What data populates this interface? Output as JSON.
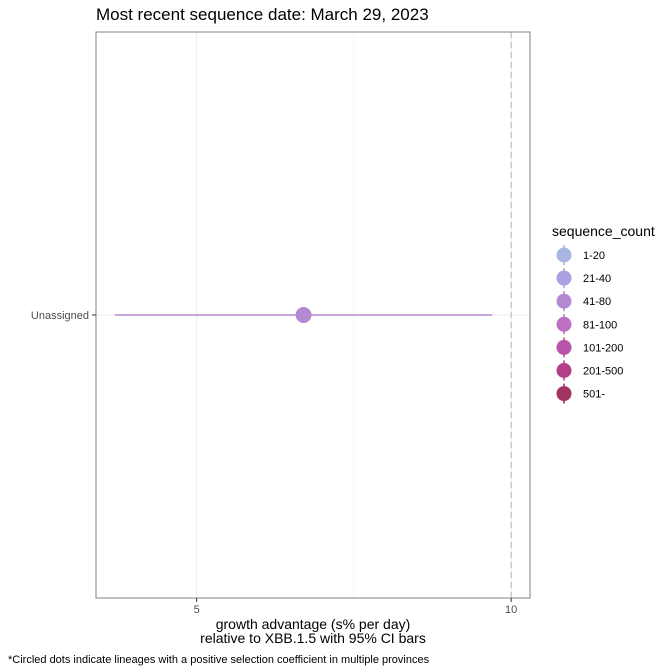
{
  "chart_data": {
    "type": "scatter",
    "title": "Most recent sequence date: March 29, 2023",
    "xlabel_line1": "growth advantage (s% per day)",
    "xlabel_line2": "relative to  XBB.1.5  with 95% CI bars",
    "caption": "*Circled dots indicate lineages with a positive selection coefficient in multiple provinces",
    "xlim": [
      3.4,
      10.3
    ],
    "x_ticks": [
      5,
      10
    ],
    "x_tick_labels": [
      "5",
      "10"
    ],
    "reference_line_x": 10,
    "categories": [
      "Unassigned"
    ],
    "points": [
      {
        "lineage": "Unassigned",
        "x": 6.7,
        "ci_low": 3.7,
        "ci_high": 9.7,
        "sequence_count": "41-80"
      }
    ],
    "grid": true,
    "legend": {
      "title": "sequence_count",
      "position": "right",
      "items": [
        {
          "label": "1-20",
          "color": "#a9b5e3"
        },
        {
          "label": "21-40",
          "color": "#aca1df"
        },
        {
          "label": "41-80",
          "color": "#b589d2"
        },
        {
          "label": "81-100",
          "color": "#bb70c2"
        },
        {
          "label": "101-200",
          "color": "#b955a9"
        },
        {
          "label": "201-500",
          "color": "#b13f8a"
        },
        {
          "label": "501-",
          "color": "#a2325f"
        }
      ]
    }
  }
}
